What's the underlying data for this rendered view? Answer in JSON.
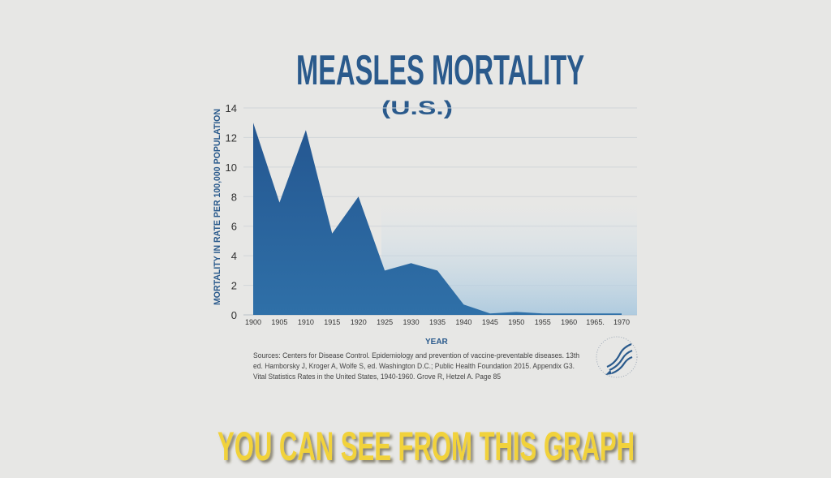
{
  "colors": {
    "area": "#2a5f96",
    "title": "#2a5a8c",
    "caption": "#f1d23b",
    "grid": "#cfd3d6"
  },
  "caption": "YOU CAN SEE FROM THIS GRAPH",
  "sources": [
    "Sources: Centers for Disease Control. Epidemiology and prevention of vaccine-preventable diseases. 13th",
    "ed. Hamborsky J, Kroger A, Wolfe S, ed. Washington D.C.; Public Health Foundation 2015. Appendix G3.",
    "Vital Statistics Rates in the United States, 1940-1960. Grove R, Hetzel A. Page 85"
  ],
  "chart_data": {
    "type": "area",
    "title": "MEASLES MORTALITY",
    "subtitle": "(U.S.)",
    "xlabel": "YEAR",
    "ylabel": "MORTALITY IN RATE PER 100,000 POPULATION",
    "x": [
      1900,
      1905,
      1910,
      1915,
      1920,
      1925,
      1930,
      1935,
      1940,
      1945,
      1950,
      1955,
      1960,
      1965,
      1970
    ],
    "values": [
      13.0,
      7.6,
      12.5,
      5.5,
      8.0,
      3.0,
      3.5,
      3.0,
      0.7,
      0.1,
      0.2,
      0.1,
      0.1,
      0.1,
      0.1
    ],
    "xtick_labels": [
      "1900",
      "1905",
      "1910",
      "1915",
      "1920",
      "1925",
      "1930",
      "1935",
      "1940",
      "1945",
      "1950",
      "1955",
      "1960",
      "1965.",
      "1970"
    ],
    "yticks": [
      0,
      2,
      4,
      6,
      8,
      10,
      12,
      14
    ],
    "ylim": [
      0,
      14
    ],
    "xlim": [
      1900,
      1970
    ],
    "grid": true
  }
}
